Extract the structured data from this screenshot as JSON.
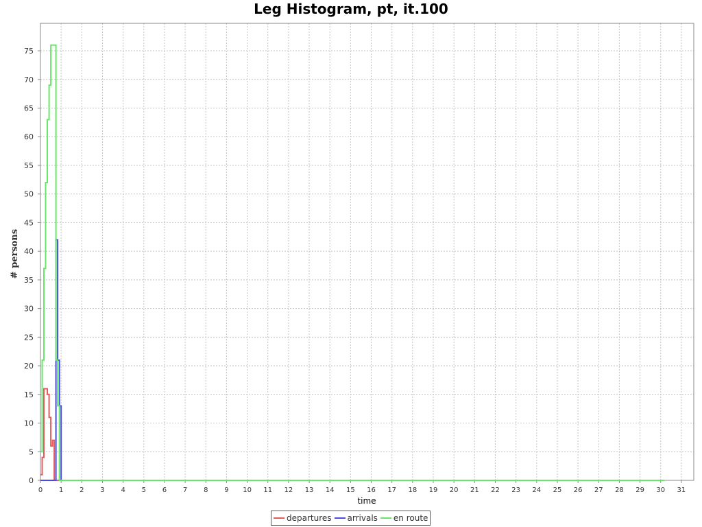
{
  "chart_data": {
    "type": "line",
    "title": "Leg Histogram, pt, it.100",
    "xlabel": "time",
    "ylabel": "# persons",
    "xlim": [
      0,
      31.6
    ],
    "ylim": [
      0,
      79.8
    ],
    "xticks": [
      0,
      1,
      2,
      3,
      4,
      5,
      6,
      7,
      8,
      9,
      10,
      11,
      12,
      13,
      14,
      15,
      16,
      17,
      18,
      19,
      20,
      21,
      22,
      23,
      24,
      25,
      26,
      27,
      28,
      29,
      30,
      31
    ],
    "yticks": [
      0,
      5,
      10,
      15,
      20,
      25,
      30,
      35,
      40,
      45,
      50,
      55,
      60,
      65,
      70,
      75
    ],
    "grid": true,
    "legend_position": "bottom-center",
    "bin_width_hours": 0.0833,
    "series": [
      {
        "name": "departures",
        "color": "#e85a5a",
        "points": [
          [
            0,
            1
          ],
          [
            0.083,
            4
          ],
          [
            0.167,
            16
          ],
          [
            0.333,
            15
          ],
          [
            0.417,
            11
          ],
          [
            0.5,
            6
          ],
          [
            0.583,
            7
          ],
          [
            0.667,
            0
          ],
          [
            30.17,
            0
          ]
        ]
      },
      {
        "name": "arrivals",
        "color": "#4a4ae8",
        "points": [
          [
            0,
            0
          ],
          [
            0.75,
            42
          ],
          [
            0.833,
            21
          ],
          [
            0.917,
            13
          ],
          [
            1.0,
            0
          ],
          [
            30.17,
            0
          ]
        ]
      },
      {
        "name": "en route",
        "color": "#66e866",
        "points": [
          [
            0,
            5
          ],
          [
            0.083,
            21
          ],
          [
            0.167,
            37
          ],
          [
            0.25,
            52
          ],
          [
            0.333,
            63
          ],
          [
            0.417,
            69
          ],
          [
            0.5,
            76
          ],
          [
            0.75,
            21
          ],
          [
            0.833,
            13
          ],
          [
            0.917,
            0
          ],
          [
            30.17,
            0
          ]
        ]
      }
    ]
  }
}
